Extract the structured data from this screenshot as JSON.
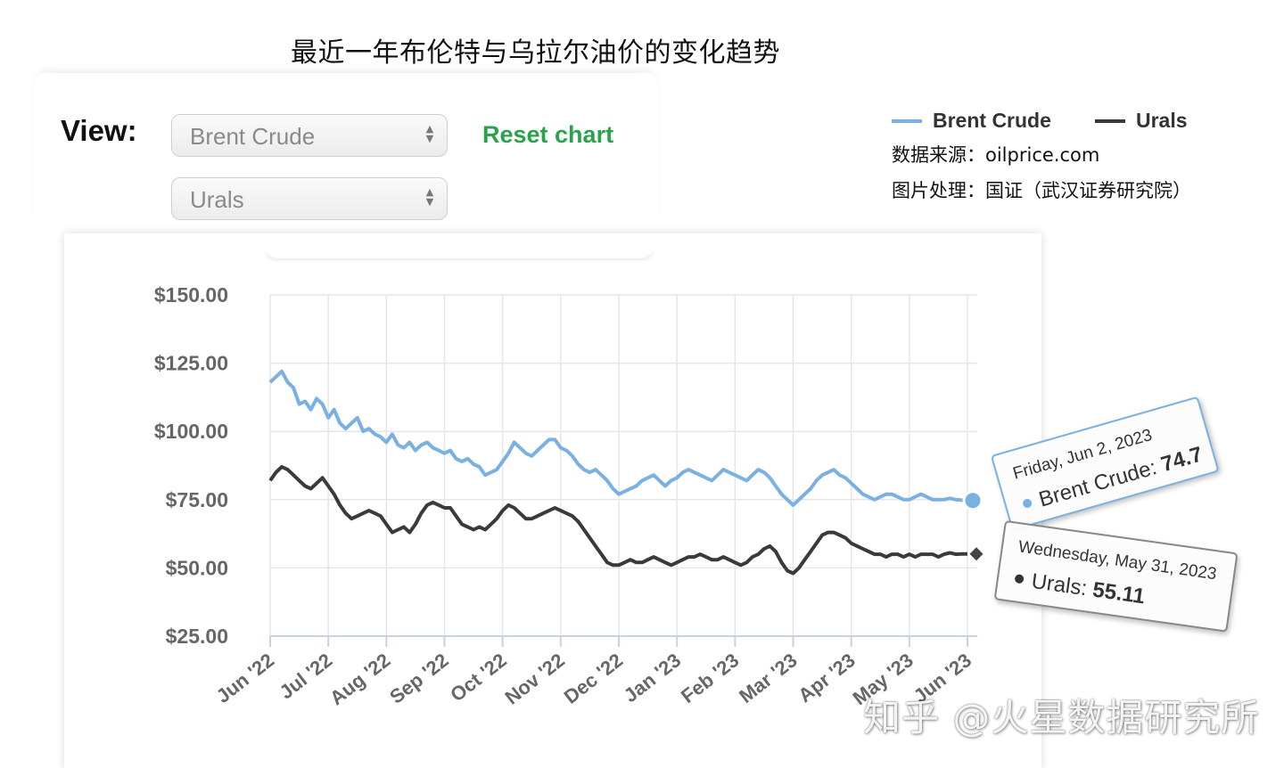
{
  "page": {
    "title": "最近一年布伦特与乌拉尔油价的变化趋势",
    "view_label": "View:",
    "selects": [
      {
        "value": "Brent Crude"
      },
      {
        "value": "Urals"
      }
    ],
    "reset_label": "Reset chart",
    "source_line": "数据来源：oilprice.com",
    "processing_line": "图片处理：国证（武汉证券研究院）",
    "watermark": "知乎 @火星数据研究所"
  },
  "colors": {
    "brent": "#7ab0e2",
    "urals": "#3a3a3a",
    "reset": "#2aa34a",
    "grid": "#e6e6e6",
    "axis_text": "#666666"
  },
  "chart_data": {
    "type": "line",
    "x_categories": [
      "Jun '22",
      "Jul '22",
      "Aug '22",
      "Sep '22",
      "Oct '22",
      "Nov '22",
      "Dec '22",
      "Jan '23",
      "Feb '23",
      "Mar '23",
      "Apr '23",
      "May '23",
      "Jun '23"
    ],
    "y_ticks": [
      "$150.00",
      "$125.00",
      "$100.00",
      "$75.00",
      "$50.00",
      "$25.00"
    ],
    "ylim": [
      25,
      150
    ],
    "grid": true,
    "legend_position": "top-right",
    "series": [
      {
        "name": "Brent Crude",
        "color": "#7ab0e2",
        "values": [
          [
            0.0,
            118
          ],
          [
            0.1,
            120
          ],
          [
            0.2,
            122
          ],
          [
            0.3,
            118
          ],
          [
            0.4,
            116
          ],
          [
            0.5,
            110
          ],
          [
            0.6,
            111
          ],
          [
            0.7,
            108
          ],
          [
            0.8,
            112
          ],
          [
            0.9,
            110
          ],
          [
            1.0,
            105
          ],
          [
            1.1,
            108
          ],
          [
            1.2,
            103
          ],
          [
            1.3,
            101
          ],
          [
            1.4,
            103
          ],
          [
            1.5,
            105
          ],
          [
            1.6,
            100
          ],
          [
            1.7,
            101
          ],
          [
            1.8,
            99
          ],
          [
            1.9,
            98
          ],
          [
            2.0,
            96
          ],
          [
            2.1,
            99
          ],
          [
            2.2,
            95
          ],
          [
            2.3,
            94
          ],
          [
            2.4,
            96
          ],
          [
            2.5,
            93
          ],
          [
            2.6,
            95
          ],
          [
            2.7,
            96
          ],
          [
            2.8,
            94
          ],
          [
            2.9,
            93
          ],
          [
            3.0,
            92
          ],
          [
            3.1,
            93
          ],
          [
            3.2,
            90
          ],
          [
            3.3,
            89
          ],
          [
            3.4,
            90
          ],
          [
            3.5,
            88
          ],
          [
            3.6,
            87
          ],
          [
            3.7,
            84
          ],
          [
            3.8,
            85
          ],
          [
            3.9,
            86
          ],
          [
            4.0,
            89
          ],
          [
            4.1,
            92
          ],
          [
            4.2,
            96
          ],
          [
            4.3,
            94
          ],
          [
            4.4,
            92
          ],
          [
            4.5,
            91
          ],
          [
            4.6,
            93
          ],
          [
            4.7,
            95
          ],
          [
            4.8,
            97
          ],
          [
            4.9,
            97
          ],
          [
            5.0,
            94
          ],
          [
            5.1,
            93
          ],
          [
            5.2,
            91
          ],
          [
            5.3,
            88
          ],
          [
            5.4,
            86
          ],
          [
            5.5,
            85
          ],
          [
            5.6,
            86
          ],
          [
            5.7,
            84
          ],
          [
            5.8,
            82
          ],
          [
            5.9,
            79
          ],
          [
            6.0,
            77
          ],
          [
            6.1,
            78
          ],
          [
            6.2,
            79
          ],
          [
            6.3,
            80
          ],
          [
            6.4,
            82
          ],
          [
            6.5,
            83
          ],
          [
            6.6,
            84
          ],
          [
            6.7,
            82
          ],
          [
            6.8,
            80
          ],
          [
            6.9,
            82
          ],
          [
            7.0,
            83
          ],
          [
            7.1,
            85
          ],
          [
            7.2,
            86
          ],
          [
            7.3,
            85
          ],
          [
            7.4,
            84
          ],
          [
            7.5,
            83
          ],
          [
            7.6,
            82
          ],
          [
            7.7,
            84
          ],
          [
            7.8,
            86
          ],
          [
            7.9,
            85
          ],
          [
            8.0,
            84
          ],
          [
            8.1,
            83
          ],
          [
            8.2,
            82
          ],
          [
            8.3,
            84
          ],
          [
            8.4,
            86
          ],
          [
            8.5,
            85
          ],
          [
            8.6,
            83
          ],
          [
            8.7,
            80
          ],
          [
            8.8,
            77
          ],
          [
            8.9,
            75
          ],
          [
            9.0,
            73
          ],
          [
            9.1,
            75
          ],
          [
            9.2,
            77
          ],
          [
            9.3,
            79
          ],
          [
            9.4,
            82
          ],
          [
            9.5,
            84
          ],
          [
            9.6,
            85
          ],
          [
            9.7,
            86
          ],
          [
            9.8,
            84
          ],
          [
            9.9,
            83
          ],
          [
            10.0,
            81
          ],
          [
            10.1,
            79
          ],
          [
            10.2,
            77
          ],
          [
            10.3,
            76
          ],
          [
            10.4,
            75
          ],
          [
            10.5,
            76
          ],
          [
            10.6,
            77
          ],
          [
            10.7,
            77
          ],
          [
            10.8,
            76
          ],
          [
            10.9,
            75
          ],
          [
            11.0,
            75
          ],
          [
            11.1,
            76
          ],
          [
            11.2,
            77
          ],
          [
            11.3,
            76
          ],
          [
            11.4,
            75
          ],
          [
            11.5,
            75
          ],
          [
            11.6,
            75
          ],
          [
            11.7,
            75.5
          ],
          [
            11.8,
            75
          ],
          [
            11.9,
            74.8
          ],
          [
            12.0,
            74.7
          ]
        ]
      },
      {
        "name": "Urals",
        "color": "#3a3a3a",
        "values": [
          [
            0.0,
            82
          ],
          [
            0.1,
            85
          ],
          [
            0.2,
            87
          ],
          [
            0.3,
            86
          ],
          [
            0.4,
            84
          ],
          [
            0.5,
            82
          ],
          [
            0.6,
            80
          ],
          [
            0.7,
            79
          ],
          [
            0.8,
            81
          ],
          [
            0.9,
            83
          ],
          [
            1.0,
            80
          ],
          [
            1.1,
            77
          ],
          [
            1.2,
            73
          ],
          [
            1.3,
            70
          ],
          [
            1.4,
            68
          ],
          [
            1.5,
            69
          ],
          [
            1.6,
            70
          ],
          [
            1.7,
            71
          ],
          [
            1.8,
            70
          ],
          [
            1.9,
            69
          ],
          [
            2.0,
            66
          ],
          [
            2.1,
            63
          ],
          [
            2.2,
            64
          ],
          [
            2.3,
            65
          ],
          [
            2.4,
            63
          ],
          [
            2.5,
            66
          ],
          [
            2.6,
            70
          ],
          [
            2.7,
            73
          ],
          [
            2.8,
            74
          ],
          [
            2.9,
            73
          ],
          [
            3.0,
            72
          ],
          [
            3.1,
            72
          ],
          [
            3.2,
            69
          ],
          [
            3.3,
            66
          ],
          [
            3.4,
            65
          ],
          [
            3.5,
            64
          ],
          [
            3.6,
            65
          ],
          [
            3.7,
            64
          ],
          [
            3.8,
            66
          ],
          [
            3.9,
            68
          ],
          [
            4.0,
            71
          ],
          [
            4.1,
            73
          ],
          [
            4.2,
            72
          ],
          [
            4.3,
            70
          ],
          [
            4.4,
            68
          ],
          [
            4.5,
            68
          ],
          [
            4.6,
            69
          ],
          [
            4.7,
            70
          ],
          [
            4.8,
            71
          ],
          [
            4.9,
            72
          ],
          [
            5.0,
            71
          ],
          [
            5.1,
            70
          ],
          [
            5.2,
            69
          ],
          [
            5.3,
            67
          ],
          [
            5.4,
            64
          ],
          [
            5.5,
            61
          ],
          [
            5.6,
            58
          ],
          [
            5.7,
            55
          ],
          [
            5.8,
            52
          ],
          [
            5.9,
            51
          ],
          [
            6.0,
            51
          ],
          [
            6.1,
            52
          ],
          [
            6.2,
            53
          ],
          [
            6.3,
            52
          ],
          [
            6.4,
            52
          ],
          [
            6.5,
            53
          ],
          [
            6.6,
            54
          ],
          [
            6.7,
            53
          ],
          [
            6.8,
            52
          ],
          [
            6.9,
            51
          ],
          [
            7.0,
            52
          ],
          [
            7.1,
            53
          ],
          [
            7.2,
            54
          ],
          [
            7.3,
            54
          ],
          [
            7.4,
            55
          ],
          [
            7.5,
            54
          ],
          [
            7.6,
            53
          ],
          [
            7.7,
            53
          ],
          [
            7.8,
            54
          ],
          [
            7.9,
            53
          ],
          [
            8.0,
            52
          ],
          [
            8.1,
            51
          ],
          [
            8.2,
            52
          ],
          [
            8.3,
            54
          ],
          [
            8.4,
            55
          ],
          [
            8.5,
            57
          ],
          [
            8.6,
            58
          ],
          [
            8.7,
            56
          ],
          [
            8.8,
            52
          ],
          [
            8.9,
            49
          ],
          [
            9.0,
            48
          ],
          [
            9.1,
            50
          ],
          [
            9.2,
            53
          ],
          [
            9.3,
            56
          ],
          [
            9.4,
            59
          ],
          [
            9.5,
            62
          ],
          [
            9.6,
            63
          ],
          [
            9.7,
            63
          ],
          [
            9.8,
            62
          ],
          [
            9.9,
            61
          ],
          [
            10.0,
            59
          ],
          [
            10.1,
            58
          ],
          [
            10.2,
            57
          ],
          [
            10.3,
            56
          ],
          [
            10.4,
            55
          ],
          [
            10.5,
            55
          ],
          [
            10.6,
            54
          ],
          [
            10.7,
            55
          ],
          [
            10.8,
            55
          ],
          [
            10.9,
            54
          ],
          [
            11.0,
            55
          ],
          [
            11.1,
            54
          ],
          [
            11.2,
            55
          ],
          [
            11.3,
            55
          ],
          [
            11.4,
            55
          ],
          [
            11.5,
            54
          ],
          [
            11.6,
            55
          ],
          [
            11.7,
            55.5
          ],
          [
            11.8,
            55
          ],
          [
            11.9,
            55.1
          ],
          [
            12.0,
            55.11
          ]
        ]
      }
    ],
    "tooltips": [
      {
        "date": "Friday, Jun 2, 2023",
        "series": "Brent Crude",
        "value": "74.7"
      },
      {
        "date": "Wednesday, May 31, 2023",
        "series": "Urals",
        "value": "55.11"
      }
    ]
  }
}
